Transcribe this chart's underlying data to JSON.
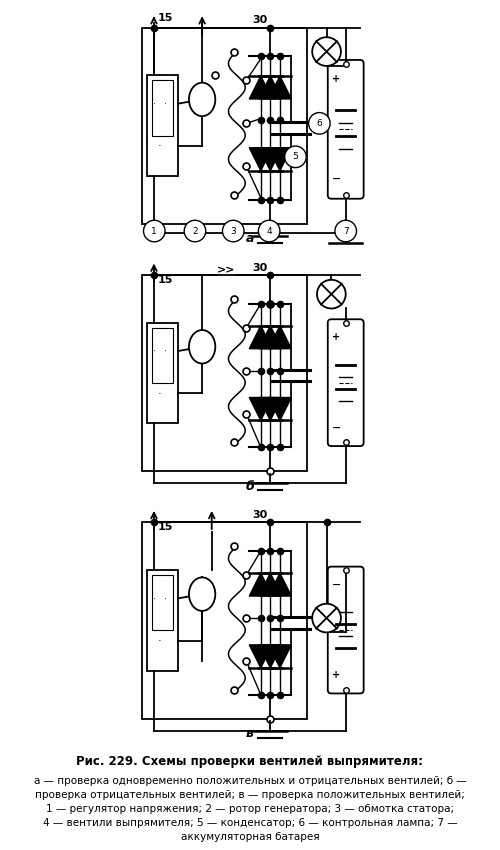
{
  "title": "Рис. 229. Схемы проверки вентилей выпрямителя:",
  "caption_lines": [
    "а — проверка одновременно положительных и отрицательных вентилей; б —",
    "проверка отрицательных вентилей; в — проверка положительных вентилей;",
    "1 — регулятор напряжения; 2 — ротор генератора; 3 — обмотка статора;",
    "4 — вентили выпрямителя; 5 — конденсатор; 6 — контрольная лампа; 7 —",
    "аккумуляторная батарея"
  ],
  "bg_color": "#ffffff",
  "lc": "#000000"
}
